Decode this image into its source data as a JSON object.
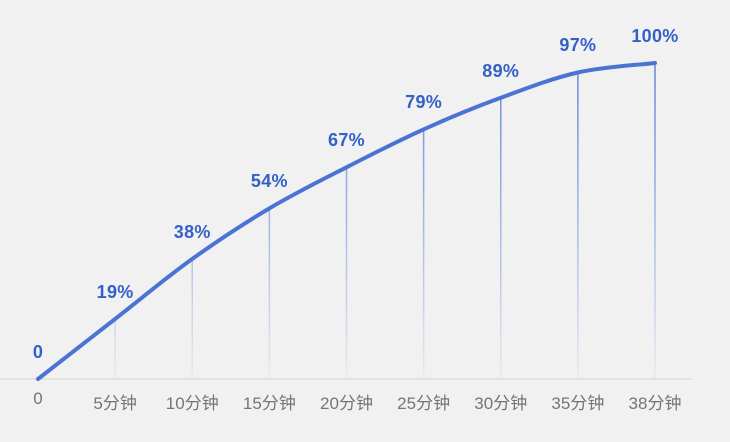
{
  "chart_data": {
    "type": "line",
    "title": "",
    "xlabel": "",
    "ylabel": "",
    "categories": [
      "0",
      "5分钟",
      "10分钟",
      "15分钟",
      "20分钟",
      "25分钟",
      "30分钟",
      "35分钟",
      "38分钟"
    ],
    "values": [
      0,
      19,
      38,
      54,
      67,
      79,
      89,
      97,
      100
    ],
    "point_labels": [
      "0",
      "19%",
      "38%",
      "54%",
      "67%",
      "79%",
      "89%",
      "97%",
      "100%"
    ],
    "ylim": [
      0,
      100
    ],
    "grid": false,
    "legend": false,
    "colors": {
      "background": "#f1f1f1",
      "line": "#4a73d4",
      "point_label": "#3560c8",
      "drop_line": "#4a73d4",
      "axis_line": "#dadada",
      "axis_label": "#757575"
    }
  }
}
